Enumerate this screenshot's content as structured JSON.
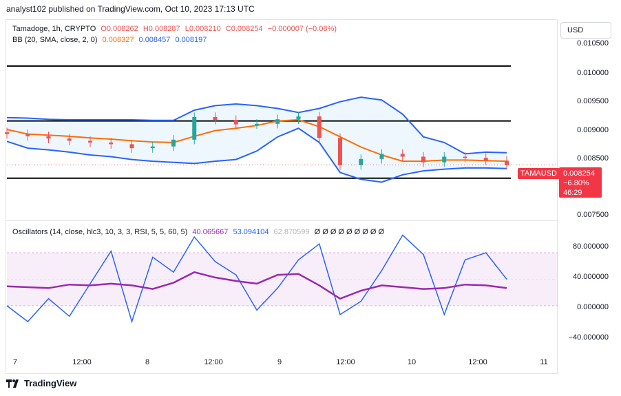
{
  "header": {
    "text": "analyst102 published on TradingView.com, Oct 10, 2023 17:13 UTC"
  },
  "legend1": {
    "symbol": "Tamadoge, 1h, CRYPTO",
    "o": "O0.008262",
    "h": "H0.008287",
    "l": "L0.008210",
    "c": "C0.008254",
    "chg": "−0.000007 (−0.08%)"
  },
  "legend2": {
    "label": "BB (20, SMA, close, 2, 0)",
    "basis": "0.008327",
    "upper": "0.008457",
    "lower": "0.008197"
  },
  "legend3": {
    "label": "Oscillators (14, close, hlc3, 10, 3, 3, RSI, 5, 5, 60, 5)",
    "v1": "40.065667",
    "v2": "53.094104",
    "v3": "62.870599",
    "empties": "Ø Ø Ø Ø Ø Ø Ø Ø Ø"
  },
  "currency": "USD",
  "price_tag": {
    "symbol": "TAMAUSD",
    "price": "0.008254",
    "change": "−6.80%",
    "timer": "46:29"
  },
  "price_axis": [
    "0.010500",
    "0.010000",
    "0.009500",
    "0.009000",
    "0.008500",
    "0.007500"
  ],
  "osc_axis": [
    "80.000000",
    "40.000000",
    "0.000000",
    "−40.000000"
  ],
  "time_axis": [
    "7",
    "12:00",
    "8",
    "12:00",
    "9",
    "12:00",
    "10",
    "12:00",
    "11"
  ],
  "brand": "TradingView",
  "colors": {
    "up": "#26a69a",
    "down": "#ef5350",
    "bb_band": "#2962ff",
    "bb_basis": "#ff6d00",
    "rsi": "#9c27b0",
    "stoch_k": "#2962ff"
  },
  "chart_data": {
    "type": "line",
    "title": "Tamadoge, 1h, CRYPTO",
    "ylim": [
      0.0073,
      0.0108
    ],
    "horizontal_levels": [
      0.01,
      0.00903,
      0.00802
    ],
    "bb_upper": [
      0.00909,
      0.00908,
      0.00906,
      0.00905,
      0.00905,
      0.00905,
      0.00905,
      0.00904,
      0.00904,
      0.00922,
      0.0093,
      0.00933,
      0.0093,
      0.00925,
      0.00918,
      0.00925,
      0.00937,
      0.00945,
      0.0094,
      0.00915,
      0.00875,
      0.00865,
      0.00845,
      0.00848,
      0.00847
    ],
    "bb_basis": [
      0.00888,
      0.0088,
      0.00878,
      0.00876,
      0.00873,
      0.00871,
      0.00868,
      0.00866,
      0.00865,
      0.00876,
      0.00886,
      0.0089,
      0.00895,
      0.00903,
      0.00905,
      0.00893,
      0.00875,
      0.00857,
      0.00843,
      0.00832,
      0.00832,
      0.00834,
      0.00834,
      0.00833,
      0.00832
    ],
    "bb_lower": [
      0.00867,
      0.00855,
      0.00852,
      0.00848,
      0.00843,
      0.0084,
      0.00835,
      0.00832,
      0.0083,
      0.00828,
      0.00832,
      0.00835,
      0.0085,
      0.00875,
      0.0089,
      0.00865,
      0.00812,
      0.008,
      0.00795,
      0.00808,
      0.00815,
      0.00818,
      0.0082,
      0.0082,
      0.00819
    ],
    "close": [
      0.0088,
      0.00876,
      0.00872,
      0.00868,
      0.00865,
      0.00862,
      0.00855,
      0.00858,
      0.0087,
      0.0091,
      0.00905,
      0.00897,
      0.00898,
      0.00906,
      0.00911,
      0.00873,
      0.00825,
      0.00836,
      0.00845,
      0.0084,
      0.0083,
      0.0084,
      0.00838,
      0.00833,
      0.00825
    ],
    "rsi": [
      42,
      41,
      40,
      44,
      43,
      45,
      43,
      39,
      46,
      58,
      52,
      48,
      45,
      55,
      56,
      43,
      28,
      37,
      43,
      41,
      39,
      40,
      44,
      43,
      40
    ],
    "stoch_k": [
      20,
      2,
      28,
      8,
      45,
      82,
      2,
      75,
      58,
      98,
      70,
      55,
      15,
      40,
      72,
      90,
      10,
      25,
      60,
      100,
      78,
      10,
      72,
      80,
      50
    ],
    "osc_ylim": [
      -55,
      105
    ],
    "osc_band": [
      20,
      80
    ]
  }
}
